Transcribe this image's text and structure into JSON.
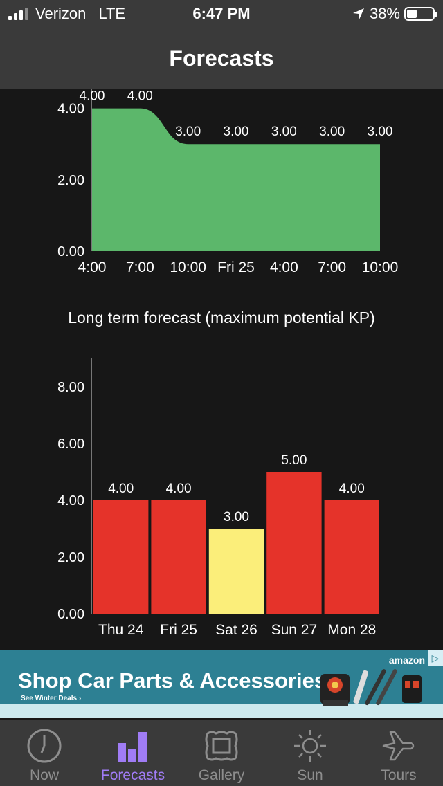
{
  "status": {
    "carrier": "Verizon",
    "network": "LTE",
    "time": "6:47 PM",
    "battery": "38%"
  },
  "nav": {
    "title": "Forecasts"
  },
  "long_term": {
    "title": "Long term forecast (maximum potential KP)"
  },
  "chart_data": [
    {
      "type": "area",
      "categories": [
        "4:00",
        "7:00",
        "10:00",
        "Fri 25",
        "4:00",
        "7:00",
        "10:00"
      ],
      "values": [
        4.0,
        4.0,
        3.0,
        3.0,
        3.0,
        3.0,
        3.0
      ],
      "data_labels": [
        "4.00",
        "4.00",
        "3.00",
        "3.00",
        "3.00",
        "3.00",
        "3.00"
      ],
      "yticks": [
        "0.00",
        "2.00",
        "4.00"
      ],
      "ylim": [
        0,
        4.4
      ],
      "color": "#5cb76b"
    },
    {
      "type": "bar",
      "title": "Long term forecast (maximum potential KP)",
      "categories": [
        "Thu 24",
        "Fri 25",
        "Sat 26",
        "Sun 27",
        "Mon 28"
      ],
      "values": [
        4.0,
        4.0,
        3.0,
        5.0,
        4.0
      ],
      "data_labels": [
        "4.00",
        "4.00",
        "3.00",
        "5.00",
        "4.00"
      ],
      "bar_colors": [
        "#e5332a",
        "#e5332a",
        "#fbee7a",
        "#e5332a",
        "#e5332a"
      ],
      "yticks": [
        "0.00",
        "2.00",
        "4.00",
        "6.00",
        "8.00"
      ],
      "ylim": [
        0,
        9
      ]
    }
  ],
  "ad": {
    "headline": "Shop Car Parts & Accessories",
    "sub": "See Winter Deals ›",
    "brand": "amazon",
    "colors": {
      "bg": "#2d8093",
      "strip": "#cce9ee"
    }
  },
  "tabs": [
    {
      "label": "Now",
      "icon": "clock-icon"
    },
    {
      "label": "Forecasts",
      "icon": "bar-chart-icon"
    },
    {
      "label": "Gallery",
      "icon": "picture-frame-icon"
    },
    {
      "label": "Sun",
      "icon": "sun-icon"
    },
    {
      "label": "Tours",
      "icon": "airplane-icon"
    }
  ]
}
